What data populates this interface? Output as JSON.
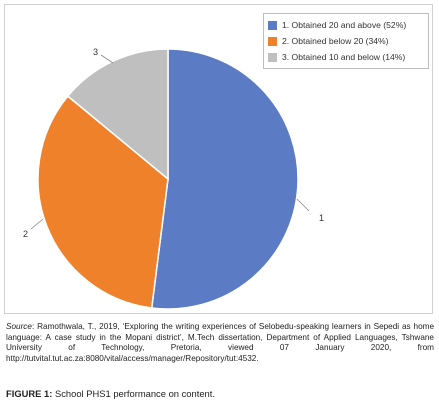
{
  "chart_data": {
    "type": "pie",
    "title": "",
    "categories": [
      "1. Obtained 20 and above (52%)",
      "2. Obtained below 20 (34%)",
      "3. Obtained 10 and below (14%)"
    ],
    "values": [
      52,
      34,
      14
    ],
    "slice_labels": [
      "1",
      "2",
      "3"
    ],
    "colors": [
      "#5b7bc4",
      "#ee8129",
      "#bfbfbf"
    ],
    "legend_position": "top-right"
  },
  "source": {
    "label": "Source",
    "text": ": Ramothwala, T., 2019, ‘Exploring the writing experiences of Selobedu-speaking learners in Sepedi as home language: A case study in the Mopani district’, M.Tech dissertation, Department of Applied Languages, Tshwane University of Technology, Pretoria, viewed 07 January 2020, from http://tutvital.tut.ac.za:8080/vital/access/manager/Repository/tut:4532."
  },
  "caption": {
    "label": "FIGURE 1:",
    "text": " School PHS1 performance on content."
  }
}
